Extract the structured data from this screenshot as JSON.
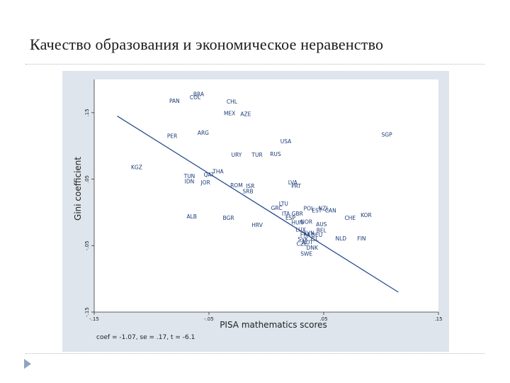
{
  "slide": {
    "title": "Качество образования и экономическое неравенство"
  },
  "colors": {
    "point_label": "#1c3a78",
    "fit_line": "#2a4f8f",
    "figure_background": "#dee5ec",
    "bullet": "#8ea4bf"
  },
  "chart_data": {
    "type": "scatter",
    "xlabel": "PISA mathematics scores",
    "ylabel": "Gini coefficient",
    "xlim": [
      -0.15,
      0.15
    ],
    "ylim": [
      -0.15,
      0.2
    ],
    "xticks": [
      -0.15,
      -0.05,
      0.05,
      0.15
    ],
    "xtick_labels": [
      "-.15",
      "-.05",
      ".05",
      ".15"
    ],
    "yticks": [
      -0.15,
      -0.05,
      0.05,
      0.15
    ],
    "ytick_labels": [
      "-.15",
      "-.05",
      ".05",
      ".15"
    ],
    "grid": false,
    "note": "coef = -1.07, se = .17, t = -6.1",
    "fit_line": {
      "x": [
        -0.13,
        0.115
      ],
      "y": [
        0.145,
        -0.12
      ]
    },
    "points": [
      {
        "label": "BRA",
        "x": -0.059,
        "y": 0.177
      },
      {
        "label": "COL",
        "x": -0.062,
        "y": 0.172
      },
      {
        "label": "PAN",
        "x": -0.08,
        "y": 0.167
      },
      {
        "label": "CHL",
        "x": -0.03,
        "y": 0.166
      },
      {
        "label": "MEX",
        "x": -0.032,
        "y": 0.148
      },
      {
        "label": "AZE",
        "x": -0.018,
        "y": 0.147
      },
      {
        "label": "ARG",
        "x": -0.055,
        "y": 0.119
      },
      {
        "label": "PER",
        "x": -0.082,
        "y": 0.114
      },
      {
        "label": "SGP",
        "x": 0.105,
        "y": 0.116
      },
      {
        "label": "USA",
        "x": 0.017,
        "y": 0.106
      },
      {
        "label": "URY",
        "x": -0.026,
        "y": 0.086
      },
      {
        "label": "TUR",
        "x": -0.008,
        "y": 0.086
      },
      {
        "label": "RUS",
        "x": 0.008,
        "y": 0.087
      },
      {
        "label": "KGZ",
        "x": -0.113,
        "y": 0.067
      },
      {
        "label": "THA",
        "x": -0.042,
        "y": 0.061
      },
      {
        "label": "QAT",
        "x": -0.05,
        "y": 0.056
      },
      {
        "label": "TUN",
        "x": -0.067,
        "y": 0.054
      },
      {
        "label": "IDN",
        "x": -0.067,
        "y": 0.046
      },
      {
        "label": "JOR",
        "x": -0.053,
        "y": 0.044
      },
      {
        "label": "LVA",
        "x": 0.023,
        "y": 0.044
      },
      {
        "label": "ROM",
        "x": -0.026,
        "y": 0.04
      },
      {
        "label": "ISR",
        "x": -0.014,
        "y": 0.039
      },
      {
        "label": "PRT",
        "x": 0.026,
        "y": 0.039
      },
      {
        "label": "SRB",
        "x": -0.016,
        "y": 0.031
      },
      {
        "label": "LTU",
        "x": 0.015,
        "y": 0.012
      },
      {
        "label": "GRC",
        "x": 0.009,
        "y": 0.006
      },
      {
        "label": "POL",
        "x": 0.037,
        "y": 0.005
      },
      {
        "label": "NZL",
        "x": 0.05,
        "y": 0.005
      },
      {
        "label": "EST",
        "x": 0.044,
        "y": 0.002
      },
      {
        "label": "CAN",
        "x": 0.056,
        "y": 0.002
      },
      {
        "label": "ITA",
        "x": 0.017,
        "y": -0.003
      },
      {
        "label": "GBR",
        "x": 0.027,
        "y": -0.003
      },
      {
        "label": "KOR",
        "x": 0.087,
        "y": -0.005
      },
      {
        "label": "ESP",
        "x": 0.021,
        "y": -0.009
      },
      {
        "label": "CHE",
        "x": 0.073,
        "y": -0.009
      },
      {
        "label": "ALB",
        "x": -0.065,
        "y": -0.007
      },
      {
        "label": "BGR",
        "x": -0.033,
        "y": -0.009
      },
      {
        "label": "NOR",
        "x": 0.035,
        "y": -0.015
      },
      {
        "label": "HUN",
        "x": 0.027,
        "y": -0.016
      },
      {
        "label": "AUS",
        "x": 0.048,
        "y": -0.019
      },
      {
        "label": "HRV",
        "x": -0.008,
        "y": -0.02
      },
      {
        "label": "LUX",
        "x": 0.03,
        "y": -0.027
      },
      {
        "label": "BEL",
        "x": 0.048,
        "y": -0.028
      },
      {
        "label": "SVN",
        "x": 0.037,
        "y": -0.032
      },
      {
        "label": "FRA",
        "x": 0.034,
        "y": -0.034
      },
      {
        "label": "DEU",
        "x": 0.044,
        "y": -0.035
      },
      {
        "label": "SVK",
        "x": 0.032,
        "y": -0.041
      },
      {
        "label": "ISL",
        "x": 0.042,
        "y": -0.041
      },
      {
        "label": "NLD",
        "x": 0.065,
        "y": -0.04
      },
      {
        "label": "FIN",
        "x": 0.083,
        "y": -0.04
      },
      {
        "label": "AUT",
        "x": 0.036,
        "y": -0.046
      },
      {
        "label": "CZE",
        "x": 0.031,
        "y": -0.048
      },
      {
        "label": "DNK",
        "x": 0.04,
        "y": -0.054
      },
      {
        "label": "SWE",
        "x": 0.035,
        "y": -0.063
      }
    ]
  }
}
